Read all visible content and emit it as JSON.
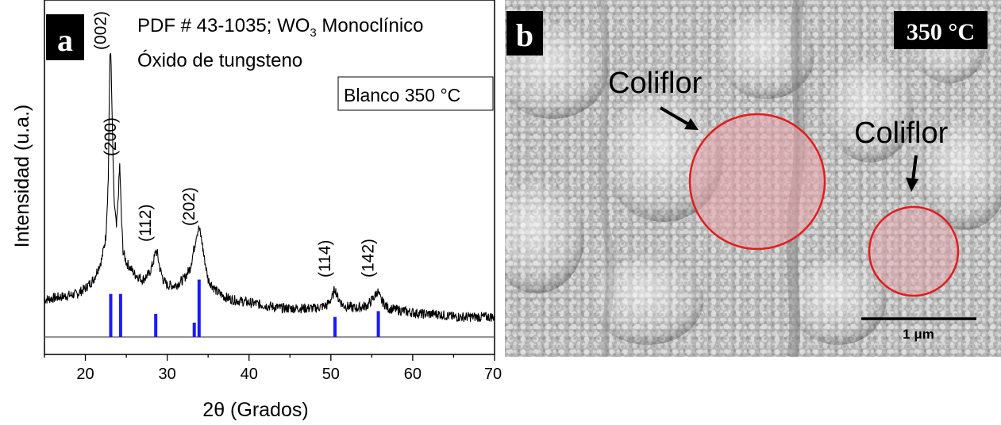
{
  "panel_a": {
    "letter": "a",
    "pdf_text": "PDF #  43-1035; WO",
    "pdf_sub": "3",
    "pdf_suffix": " Monoclínico",
    "compound": "Óxido de tungsteno",
    "legend_box": "Blanco 350 °C"
  },
  "panel_b": {
    "letter": "b",
    "temp_label": "350 °C",
    "label_1": "Coliflor",
    "label_2": "Coliflor",
    "scale_label": "1 μm"
  },
  "colors": {
    "pattern": "#000000",
    "reference_bars": "#1a1aff",
    "circle_stroke": "#e11d1d",
    "circle_fill": "#e8a0a8",
    "sem_bg": "#b4b4b4"
  },
  "chart_data": {
    "type": "line",
    "xlabel": "2θ (Grados)",
    "ylabel": "Intensidad (u.a.)",
    "xlim": [
      15,
      70
    ],
    "xticks": [
      20,
      30,
      40,
      50,
      60,
      70
    ],
    "yticks_shown": false,
    "grid": false,
    "series": [
      {
        "kind": "pattern",
        "x": [
          15,
          17,
          19,
          20,
          21,
          22,
          22.5,
          22.8,
          23.0,
          23.1,
          23.3,
          23.5,
          23.8,
          24.0,
          24.2,
          24.4,
          24.6,
          25.0,
          25.5,
          26,
          27,
          27.8,
          28.3,
          28.6,
          28.8,
          29.1,
          29.5,
          30,
          31,
          32,
          32.8,
          33.3,
          33.6,
          33.9,
          34.2,
          34.5,
          35,
          36,
          37,
          38,
          40,
          42,
          44,
          46,
          48,
          49.5,
          50.2,
          50.5,
          50.8,
          51.5,
          53,
          54.5,
          55.3,
          55.7,
          56.1,
          57,
          59,
          61,
          63,
          65,
          67,
          69,
          70
        ],
        "y": [
          0.13,
          0.14,
          0.15,
          0.17,
          0.2,
          0.27,
          0.35,
          0.55,
          0.98,
          1.0,
          0.72,
          0.48,
          0.38,
          0.48,
          0.6,
          0.42,
          0.3,
          0.26,
          0.24,
          0.22,
          0.2,
          0.22,
          0.26,
          0.3,
          0.29,
          0.24,
          0.2,
          0.18,
          0.18,
          0.2,
          0.24,
          0.31,
          0.36,
          0.38,
          0.34,
          0.28,
          0.2,
          0.16,
          0.14,
          0.13,
          0.12,
          0.11,
          0.1,
          0.1,
          0.1,
          0.11,
          0.14,
          0.17,
          0.14,
          0.11,
          0.1,
          0.11,
          0.14,
          0.16,
          0.13,
          0.1,
          0.09,
          0.08,
          0.08,
          0.07,
          0.07,
          0.07,
          0.07
        ]
      },
      {
        "kind": "reference",
        "name": "PDF #  43-1035",
        "x": [
          23.1,
          24.3,
          28.6,
          33.3,
          33.9,
          50.5,
          55.8
        ],
        "y": [
          0.15,
          0.15,
          0.08,
          0.05,
          0.2,
          0.07,
          0.09
        ]
      }
    ],
    "peak_labels": [
      {
        "label": "(002)",
        "x": 23.1
      },
      {
        "label": "(200)",
        "x": 24.3
      },
      {
        "label": "(112)",
        "x": 28.6
      },
      {
        "label": "(202)",
        "x": 33.9
      },
      {
        "label": "(114)",
        "x": 50.5
      },
      {
        "label": "(142)",
        "x": 55.8
      }
    ]
  }
}
